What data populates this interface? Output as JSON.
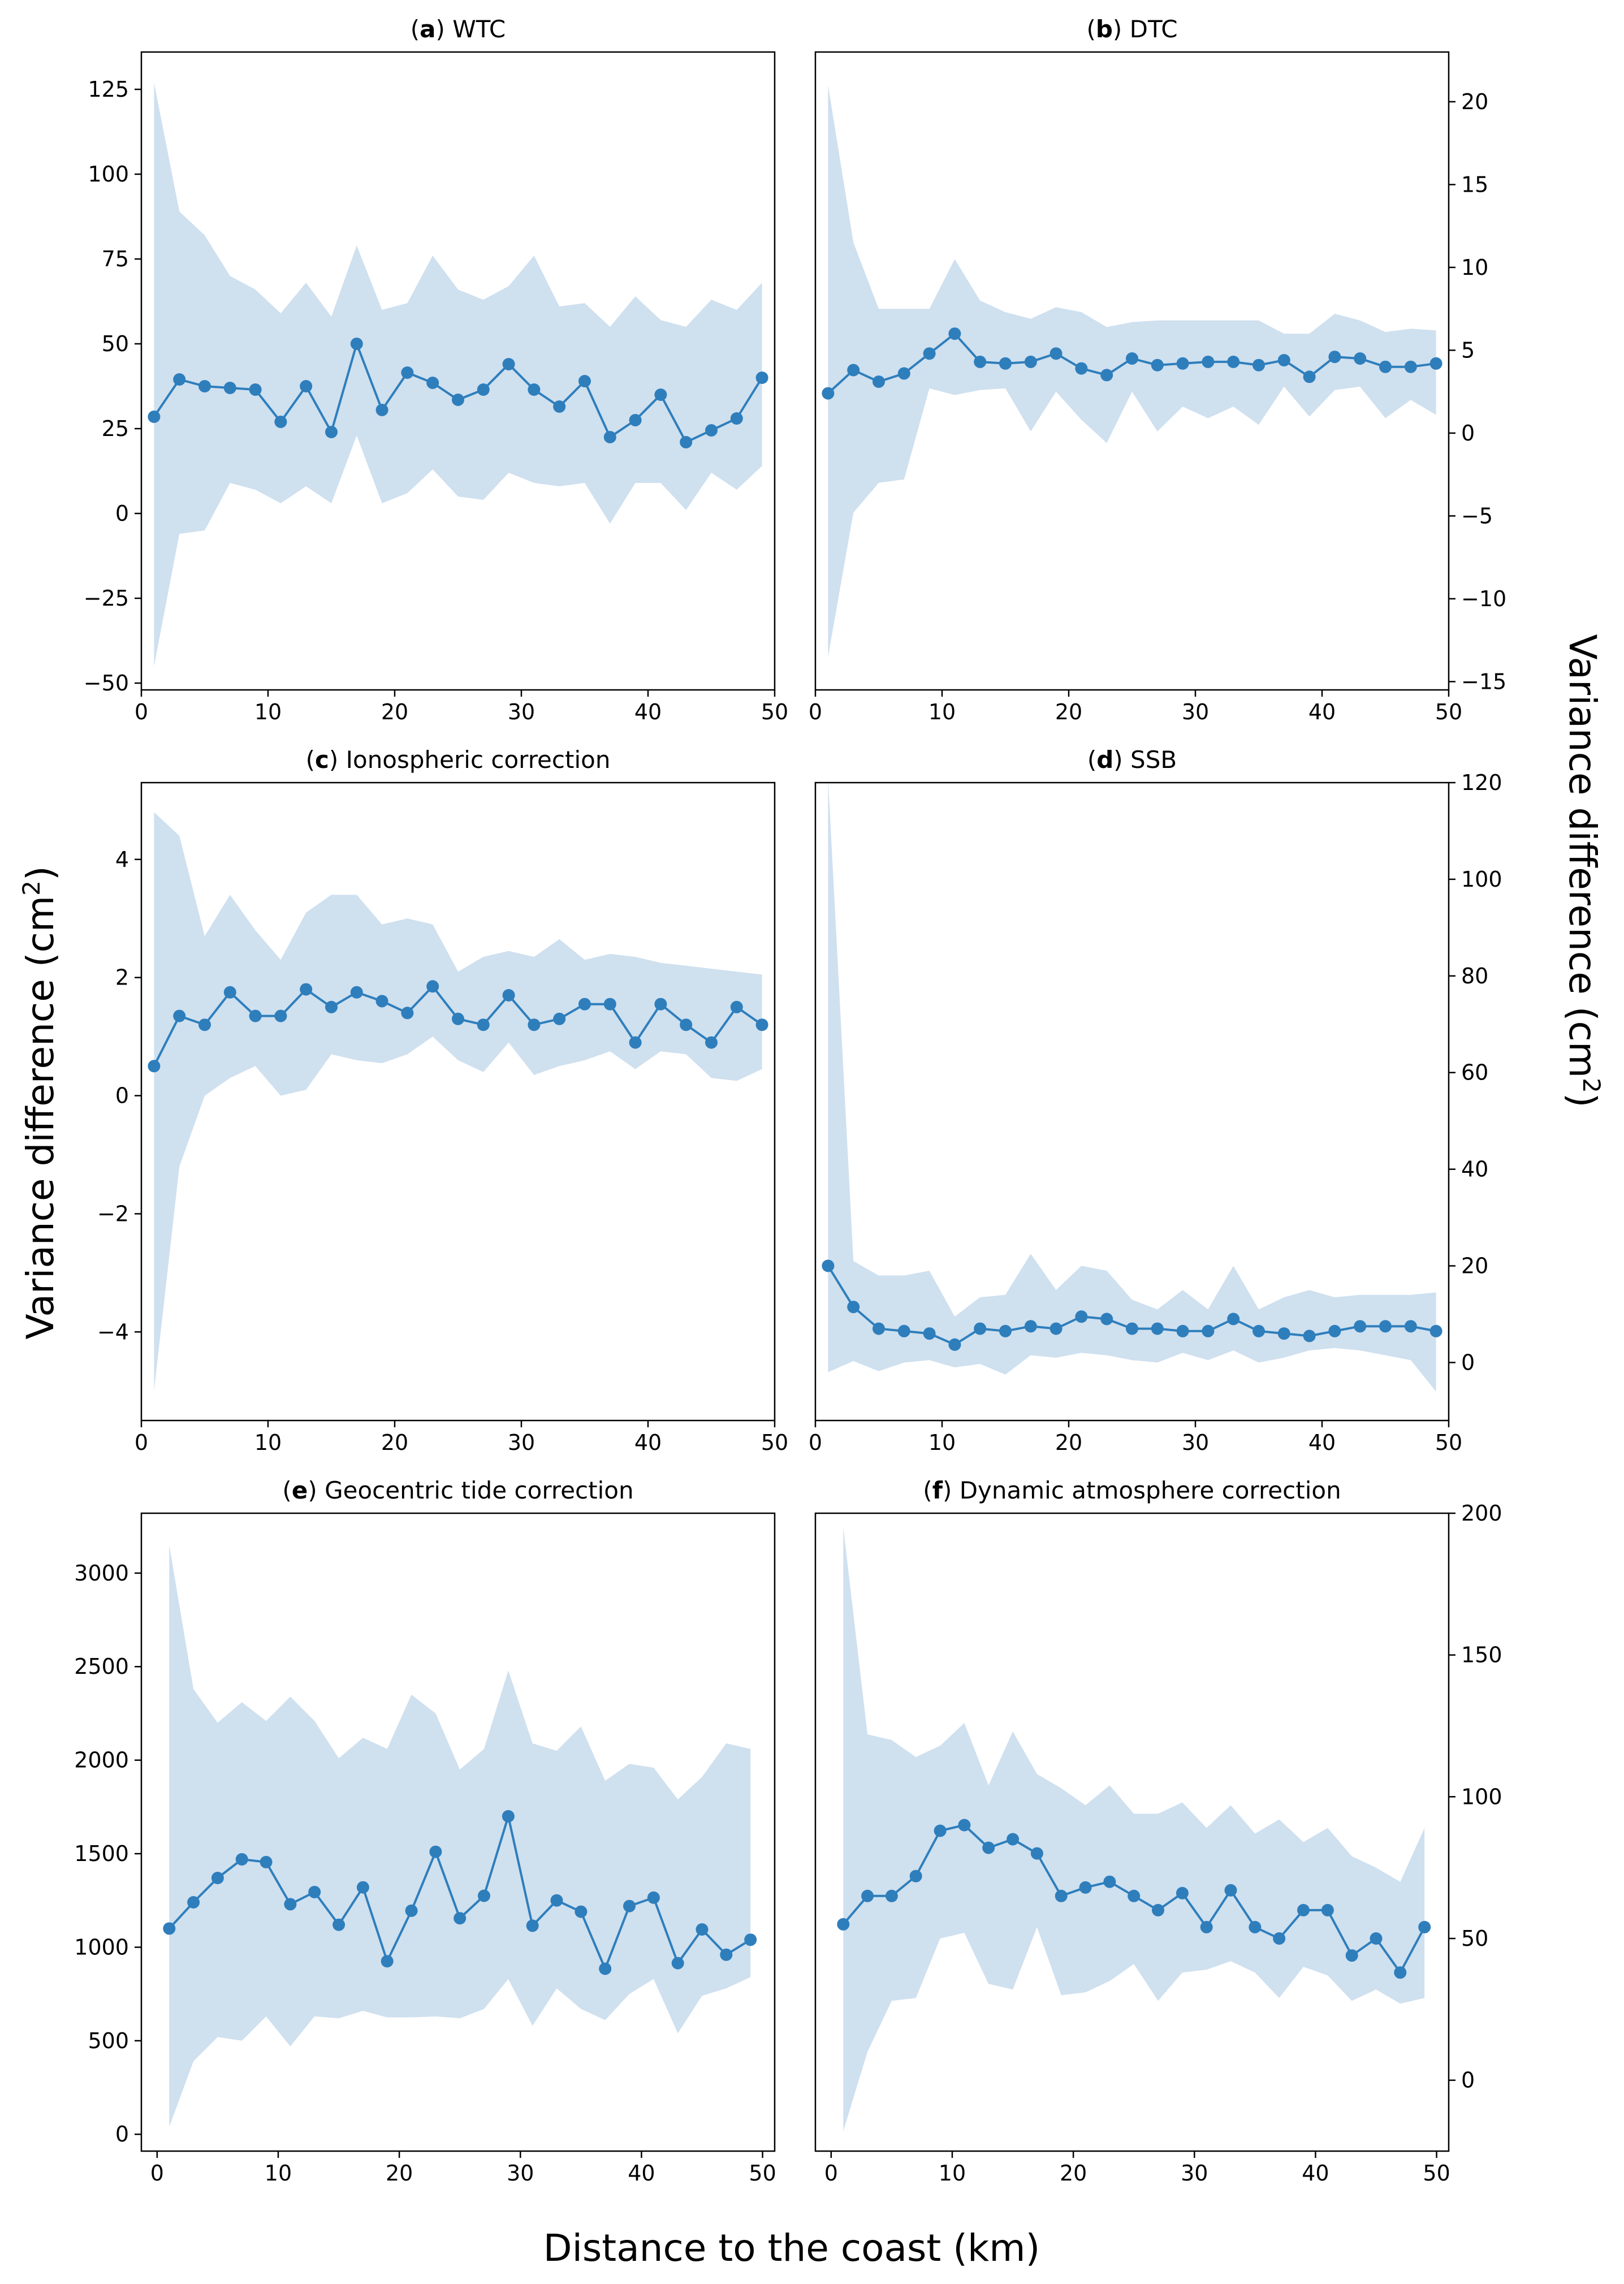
{
  "figure": {
    "ylabel_left": "Variance difference (cm",
    "ylabel_right": "Variance difference (cm",
    "ylabel_sup": "2",
    "ylabel_close": ")",
    "xlabel": "Distance to the coast (km)"
  },
  "colors": {
    "line": "#2e7ebc",
    "band": "#cfe0ef",
    "axis": "#000000"
  },
  "chart_data": [
    {
      "id": "a",
      "type": "line",
      "letter": "a",
      "title": "WTC",
      "title_open": "(",
      "title_close": ") ",
      "x": [
        1,
        3,
        5,
        7,
        9,
        11,
        13,
        15,
        17,
        19,
        21,
        23,
        25,
        27,
        29,
        31,
        33,
        35,
        37,
        39,
        41,
        43,
        45,
        47,
        49
      ],
      "mean": [
        28.5,
        39.5,
        37.5,
        37,
        36.5,
        27,
        37.5,
        24,
        50,
        30.5,
        41.5,
        38.5,
        33.5,
        36.5,
        44,
        36.5,
        31.5,
        39,
        22.5,
        27.5,
        35,
        21,
        24.5,
        28,
        40
      ],
      "upper": [
        127,
        89,
        82,
        70,
        66,
        59,
        68,
        58,
        79,
        60,
        62,
        76,
        66,
        63,
        67,
        76,
        61,
        62,
        55,
        64,
        57,
        55,
        63,
        60,
        68
      ],
      "lower": [
        -45,
        -6,
        -5,
        9,
        7,
        3,
        8,
        3,
        23,
        3,
        6,
        13,
        5,
        4,
        12,
        9,
        8,
        9,
        -3,
        9,
        9,
        1,
        12,
        7,
        14
      ],
      "xlim": [
        0,
        50
      ],
      "ylim": [
        -52,
        136
      ],
      "xticks": [
        0,
        10,
        20,
        30,
        40,
        50
      ],
      "xtick_labels": [
        "0",
        "10",
        "20",
        "30",
        "40",
        "50"
      ],
      "yticks": [
        -50,
        -25,
        0,
        25,
        50,
        75,
        100,
        125
      ],
      "ytick_labels": [
        "−50",
        "−25",
        "0",
        "25",
        "50",
        "75",
        "100",
        "125"
      ],
      "yaxis_side": "left"
    },
    {
      "id": "b",
      "type": "line",
      "letter": "b",
      "title": "DTC",
      "title_open": "(",
      "title_close": ") ",
      "x": [
        1,
        3,
        5,
        7,
        9,
        11,
        13,
        15,
        17,
        19,
        21,
        23,
        25,
        27,
        29,
        31,
        33,
        35,
        37,
        39,
        41,
        43,
        45,
        47,
        49
      ],
      "mean": [
        2.4,
        3.8,
        3.1,
        3.6,
        4.8,
        6,
        4.3,
        4.2,
        4.3,
        4.8,
        3.9,
        3.5,
        4.5,
        4.1,
        4.2,
        4.3,
        4.3,
        4.1,
        4.4,
        3.4,
        4.6,
        4.5,
        4,
        4,
        4.2
      ],
      "upper": [
        21,
        11.5,
        7.5,
        7.5,
        7.5,
        10.5,
        8,
        7.3,
        6.9,
        7.6,
        7.3,
        6.4,
        6.7,
        6.8,
        6.8,
        6.8,
        6.8,
        6.8,
        6,
        6,
        7.2,
        6.8,
        6.1,
        6.3,
        6.2
      ],
      "lower": [
        -13.5,
        -4.8,
        -3,
        -2.8,
        2.7,
        2.3,
        2.6,
        2.7,
        0.1,
        2.5,
        0.8,
        -0.6,
        2.5,
        0.1,
        1.6,
        0.9,
        1.6,
        0.5,
        2.8,
        1,
        2.6,
        2.8,
        0.9,
        2,
        1.1
      ],
      "xlim": [
        0,
        50
      ],
      "ylim": [
        -15.5,
        23
      ],
      "xticks": [
        0,
        10,
        20,
        30,
        40,
        50
      ],
      "xtick_labels": [
        "0",
        "10",
        "20",
        "30",
        "40",
        "50"
      ],
      "yticks": [
        -15,
        -10,
        -5,
        0,
        5,
        10,
        15,
        20
      ],
      "ytick_labels": [
        "−15",
        "−10",
        "−5",
        "0",
        "5",
        "10",
        "15",
        "20"
      ],
      "yaxis_side": "right"
    },
    {
      "id": "c",
      "type": "line",
      "letter": "c",
      "title": "Ionospheric correction",
      "title_open": "(",
      "title_close": ") ",
      "x": [
        1,
        3,
        5,
        7,
        9,
        11,
        13,
        15,
        17,
        19,
        21,
        23,
        25,
        27,
        29,
        31,
        33,
        35,
        37,
        39,
        41,
        43,
        45,
        47,
        49
      ],
      "mean": [
        0.5,
        1.35,
        1.2,
        1.75,
        1.35,
        1.35,
        1.8,
        1.5,
        1.75,
        1.6,
        1.4,
        1.85,
        1.3,
        1.2,
        1.7,
        1.2,
        1.3,
        1.55,
        1.55,
        0.9,
        1.55,
        1.2,
        0.9,
        1.5,
        1.2
      ],
      "upper": [
        4.8,
        4.4,
        2.7,
        3.4,
        2.8,
        2.3,
        3.1,
        3.4,
        3.4,
        2.9,
        3,
        2.9,
        2.1,
        2.35,
        2.45,
        2.35,
        2.65,
        2.3,
        2.4,
        2.35,
        2.25,
        2.2,
        2.15,
        2.1,
        2.05
      ],
      "lower": [
        -5,
        -1.2,
        0,
        0.3,
        0.5,
        0,
        0.1,
        0.7,
        0.6,
        0.55,
        0.7,
        1,
        0.6,
        0.4,
        0.9,
        0.35,
        0.5,
        0.6,
        0.75,
        0.45,
        0.75,
        0.7,
        0.3,
        0.25,
        0.45
      ],
      "xlim": [
        0,
        50
      ],
      "ylim": [
        -5.5,
        5.3
      ],
      "xticks": [
        0,
        10,
        20,
        30,
        40,
        50
      ],
      "xtick_labels": [
        "0",
        "10",
        "20",
        "30",
        "40",
        "50"
      ],
      "yticks": [
        -4,
        -2,
        0,
        2,
        4
      ],
      "ytick_labels": [
        "−4",
        "−2",
        "0",
        "2",
        "4"
      ],
      "yaxis_side": "left"
    },
    {
      "id": "d",
      "type": "line",
      "letter": "d",
      "title": "SSB",
      "title_open": "(",
      "title_close": ") ",
      "x": [
        1,
        3,
        5,
        7,
        9,
        11,
        13,
        15,
        17,
        19,
        21,
        23,
        25,
        27,
        29,
        31,
        33,
        35,
        37,
        39,
        41,
        43,
        45,
        47,
        49
      ],
      "mean": [
        20,
        11.5,
        7,
        6.5,
        6,
        3.7,
        7,
        6.5,
        7.5,
        7,
        9.5,
        9,
        7,
        7,
        6.5,
        6.5,
        9,
        6.5,
        6,
        5.5,
        6.5,
        7.5,
        7.5,
        7.5,
        6.5
      ],
      "upper": [
        121,
        21,
        18,
        18,
        19,
        9.5,
        13.5,
        14,
        22.5,
        15,
        20,
        19,
        13,
        11,
        15,
        11,
        20,
        11,
        13.5,
        15,
        13.5,
        14,
        14,
        14,
        14.5
      ],
      "lower": [
        -2,
        0.3,
        -1.8,
        0,
        0.5,
        -1,
        -0.3,
        -2.5,
        1.5,
        1,
        2,
        1.5,
        0.5,
        0,
        2,
        0.5,
        2.5,
        0,
        1,
        2.5,
        3,
        2.5,
        1.5,
        0.5,
        -6
      ],
      "xlim": [
        0,
        50
      ],
      "ylim": [
        -12,
        120
      ],
      "xticks": [
        0,
        10,
        20,
        30,
        40,
        50
      ],
      "xtick_labels": [
        "0",
        "10",
        "20",
        "30",
        "40",
        "50"
      ],
      "yticks": [
        0,
        20,
        40,
        60,
        80,
        100,
        120
      ],
      "ytick_labels": [
        "0",
        "20",
        "40",
        "60",
        "80",
        "100",
        "120"
      ],
      "yaxis_side": "right"
    },
    {
      "id": "e",
      "type": "line",
      "letter": "e",
      "title": "Geocentric tide correction",
      "title_open": "(",
      "title_close": ") ",
      "x": [
        1,
        3,
        5,
        7,
        9,
        11,
        13,
        15,
        17,
        19,
        21,
        23,
        25,
        27,
        29,
        31,
        33,
        35,
        37,
        39,
        41,
        43,
        45,
        47,
        49
      ],
      "mean": [
        1100,
        1240,
        1370,
        1470,
        1455,
        1230,
        1295,
        1120,
        1320,
        925,
        1195,
        1510,
        1155,
        1275,
        1700,
        1115,
        1250,
        1190,
        885,
        1220,
        1265,
        915,
        1095,
        960,
        1040
      ],
      "upper": [
        3150,
        2380,
        2200,
        2310,
        2210,
        2340,
        2210,
        2010,
        2120,
        2060,
        2350,
        2250,
        1950,
        2060,
        2480,
        2090,
        2050,
        2180,
        1890,
        1980,
        1960,
        1790,
        1910,
        2090,
        2060
      ],
      "lower": [
        40,
        390,
        520,
        500,
        630,
        470,
        630,
        620,
        660,
        625,
        625,
        630,
        620,
        670,
        830,
        580,
        780,
        670,
        610,
        750,
        830,
        540,
        740,
        780,
        840
      ],
      "xlim": [
        -1.3,
        51
      ],
      "ylim": [
        -90,
        3320
      ],
      "xticks": [
        0,
        10,
        20,
        30,
        40,
        50
      ],
      "xtick_labels": [
        "0",
        "10",
        "20",
        "30",
        "40",
        "50"
      ],
      "yticks": [
        0,
        500,
        1000,
        1500,
        2000,
        2500,
        3000
      ],
      "ytick_labels": [
        "0",
        "500",
        "1000",
        "1500",
        "2000",
        "2500",
        "3000"
      ],
      "yaxis_side": "left"
    },
    {
      "id": "f",
      "type": "line",
      "letter": "f",
      "title": "Dynamic atmosphere correction",
      "title_open": "(",
      "title_close": ") ",
      "x": [
        1,
        3,
        5,
        7,
        9,
        11,
        13,
        15,
        17,
        19,
        21,
        23,
        25,
        27,
        29,
        31,
        33,
        35,
        37,
        39,
        41,
        43,
        45,
        47,
        49
      ],
      "mean": [
        55,
        65,
        65,
        72,
        88,
        90,
        82,
        85,
        80,
        65,
        68,
        70,
        65,
        60,
        66,
        54,
        67,
        54,
        50,
        60,
        60,
        44,
        50,
        38,
        54
      ],
      "upper": [
        195,
        122,
        120,
        114,
        118,
        126,
        104,
        123,
        108,
        103,
        97,
        104,
        94,
        94,
        98,
        89,
        97,
        87,
        92,
        84,
        89,
        79,
        75,
        70,
        89
      ],
      "lower": [
        -18,
        10,
        28,
        29,
        50,
        52,
        34,
        32,
        54,
        30,
        31,
        35,
        41,
        28,
        38,
        39,
        42,
        38,
        29,
        40,
        37,
        28,
        32,
        27,
        29
      ],
      "xlim": [
        -1.3,
        51
      ],
      "ylim": [
        -25,
        200
      ],
      "xticks": [
        0,
        10,
        20,
        30,
        40,
        50
      ],
      "xtick_labels": [
        "0",
        "10",
        "20",
        "30",
        "40",
        "50"
      ],
      "yticks": [
        0,
        50,
        100,
        150,
        200
      ],
      "ytick_labels": [
        "0",
        "50",
        "100",
        "150",
        "200"
      ],
      "yaxis_side": "right"
    }
  ]
}
